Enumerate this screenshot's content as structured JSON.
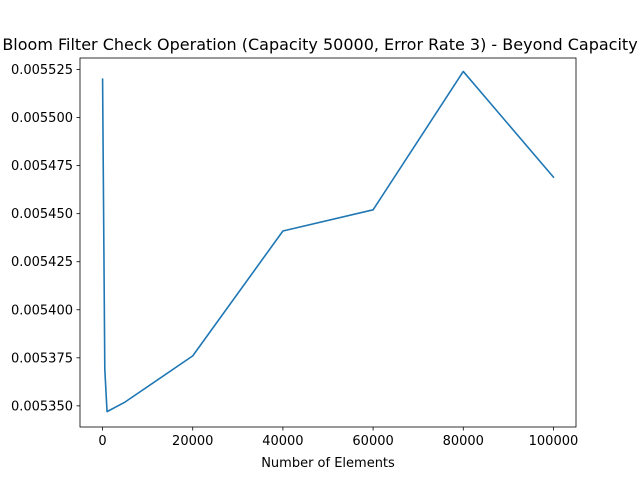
{
  "chart_data": {
    "type": "line",
    "title": "Bloom Filter Check Operation (Capacity 50000, Error Rate 3) - Beyond Capacity",
    "xlabel": "Number of Elements",
    "ylabel": "",
    "xlim": [
      -5000,
      105000
    ],
    "ylim": [
      0.005339,
      0.005531
    ],
    "x_ticks": [
      0,
      20000,
      40000,
      60000,
      80000,
      100000
    ],
    "x_tick_labels": [
      "0",
      "20000",
      "40000",
      "60000",
      "80000",
      "100000"
    ],
    "y_ticks": [
      0.00535,
      0.005375,
      0.0054,
      0.005425,
      0.00545,
      0.005475,
      0.0055,
      0.005525
    ],
    "y_tick_labels": [
      "0.005350",
      "0.005375",
      "0.005400",
      "0.005425",
      "0.005450",
      "0.005475",
      "0.005500",
      "0.005525"
    ],
    "grid": false,
    "series": [
      {
        "color": "#1f77b4",
        "x": [
          10,
          500,
          1000,
          5000,
          20000,
          40000,
          60000,
          80000,
          100000
        ],
        "y": [
          0.00552,
          0.005369,
          0.005347,
          0.005352,
          0.005376,
          0.005441,
          0.005452,
          0.005524,
          0.005469
        ]
      }
    ]
  }
}
